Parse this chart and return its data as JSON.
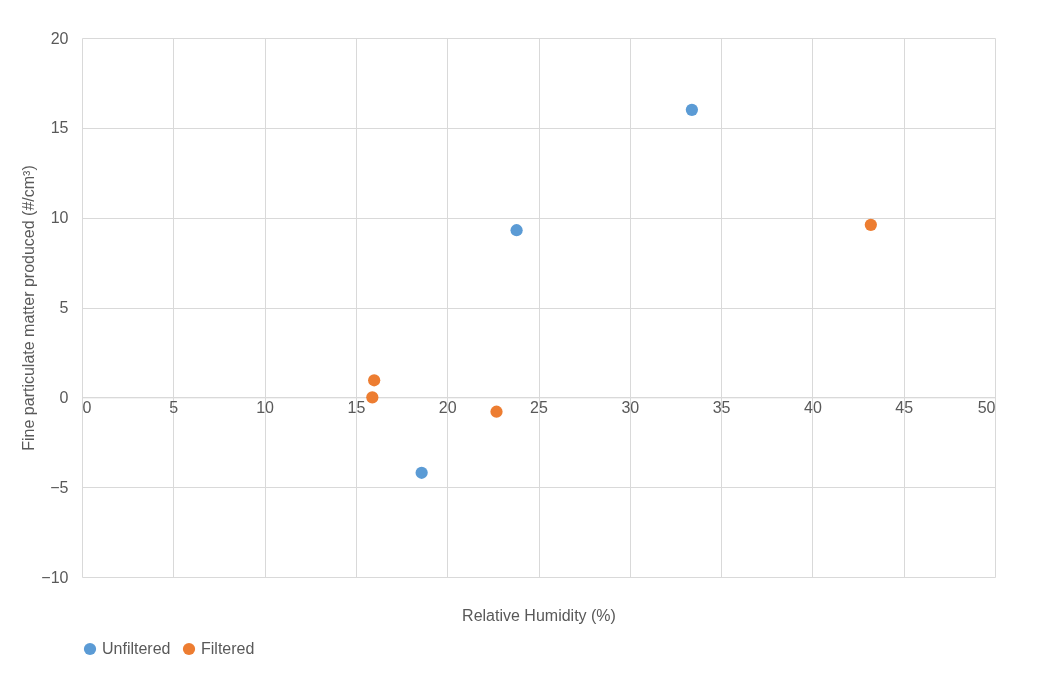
{
  "chart_data": {
    "type": "scatter",
    "xlabel": "Relative Humidity (%)",
    "ylabel": "Fine particulate matter produced (#/cm³)",
    "xlim": [
      0,
      50
    ],
    "xticks": [
      0,
      5,
      10,
      15,
      20,
      25,
      30,
      35,
      40,
      45,
      50
    ],
    "ylim": [
      -10,
      20
    ],
    "yticks": [
      -10,
      -5,
      0,
      5,
      10,
      15,
      20
    ],
    "grid": true,
    "legend": "bottom",
    "marker": "circle",
    "series": [
      {
        "name": "Unfiltered",
        "color": "#5b9bd5",
        "x": [
          18.6,
          23.8,
          33.4
        ],
        "values": [
          -4.2,
          9.3,
          16.0
        ]
      },
      {
        "name": "Filtered",
        "color": "#ed7d31",
        "x": [
          16.0,
          15.9,
          22.7,
          43.2
        ],
        "values": [
          0.95,
          0.0,
          -0.8,
          9.6
        ]
      }
    ]
  }
}
